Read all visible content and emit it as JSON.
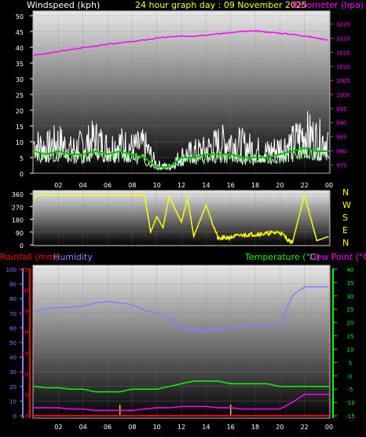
{
  "header": {
    "windspeed_label": "Windspeed (kph)",
    "title": "24 hour graph day : 09 November 2025",
    "barometer_label": "Barometer (hpa)"
  },
  "colors": {
    "windspeed": "#ffffff",
    "title": "#ffff00",
    "barometer": "#ff00ff",
    "wind_gust": "#ffffff",
    "wind_avg_light": "#b0ffb0",
    "wind_avg_dark": "#00c000",
    "wind_dir": "#ffff00",
    "rainfall": "#ff0000",
    "humidity": "#8080ff",
    "temperature": "#00ff00",
    "dewpoint": "#ff00ff",
    "rain_bar": "#ffcc00"
  },
  "x_tick_labels": [
    "02",
    "04",
    "06",
    "08",
    "10",
    "12",
    "14",
    "16",
    "18",
    "20",
    "22",
    "00"
  ],
  "panel_top": {
    "left_ticks": [
      "0",
      "5",
      "10",
      "15",
      "20",
      "25",
      "30",
      "35",
      "40",
      "45",
      "50"
    ],
    "right_ticks": [
      "975",
      "980",
      "985",
      "990",
      "995",
      "1000",
      "1005",
      "1010",
      "1015",
      "1020",
      "1025"
    ]
  },
  "panel_mid": {
    "left_ticks": [
      "0",
      "90",
      "180",
      "270",
      "360"
    ],
    "compass": [
      "N",
      "W",
      "S",
      "E",
      "N"
    ]
  },
  "panel_bottom": {
    "rain_label": "Rainfall (mm)",
    "humidity_label": "Humidity",
    "temp_label": "Temperature (°C)",
    "dew_label": "Dew Point (°C)",
    "humidity_ticks": [
      "0",
      "10",
      "20",
      "30",
      "40",
      "50",
      "60",
      "70",
      "80",
      "90",
      "100"
    ],
    "rain_ticks": [
      "0",
      "5",
      "10",
      "15",
      "20",
      "25",
      "30",
      "35"
    ],
    "temp_ticks": [
      "-15",
      "-10",
      "-5",
      "0",
      "5",
      "10",
      "15",
      "20",
      "25",
      "30",
      "35",
      "40"
    ]
  },
  "chart_data": [
    {
      "type": "line",
      "title": "24 hour graph day : 09 November 2025",
      "x_unit": "hour",
      "xlim": [
        0,
        24
      ],
      "y_left": {
        "label": "Windspeed (kph)",
        "ylim": [
          0,
          50
        ]
      },
      "y_right": {
        "label": "Barometer (hpa)",
        "ylim": [
          972,
          1028
        ]
      },
      "series": [
        {
          "name": "Barometer (hpa)",
          "axis": "right",
          "x": [
            0,
            1,
            2,
            3,
            4,
            5,
            6,
            7,
            8,
            9,
            10,
            11,
            12,
            13,
            14,
            15,
            16,
            17,
            18,
            19,
            20,
            21,
            22,
            23,
            24
          ],
          "values": [
            1014.0,
            1014.5,
            1015.3,
            1016.0,
            1016.7,
            1017.2,
            1017.8,
            1018.4,
            1018.8,
            1019.4,
            1020.0,
            1020.5,
            1020.7,
            1020.8,
            1021.2,
            1021.6,
            1022.0,
            1022.4,
            1022.6,
            1022.2,
            1021.8,
            1021.4,
            1020.8,
            1020.1,
            1019.3
          ]
        },
        {
          "axis": "left",
          "x": [
            0,
            1,
            2,
            3,
            4,
            5,
            6,
            7,
            8,
            9,
            10,
            11,
            12,
            13,
            14,
            15,
            16,
            17,
            18,
            19,
            20,
            21,
            22,
            23,
            24
          ],
          "values": [
            14,
            12,
            15,
            11,
            13,
            16,
            12,
            14,
            12,
            13,
            4,
            3,
            8,
            10,
            11,
            14,
            15,
            13,
            11,
            10,
            12,
            14,
            19,
            16,
            15
          ]
        },
        {
          "axis": "left",
          "x": [
            0,
            1,
            2,
            3,
            4,
            5,
            6,
            7,
            8,
            9,
            10,
            11,
            12,
            13,
            14,
            15,
            16,
            17,
            18,
            19,
            20,
            21,
            22,
            23,
            24
          ],
          "values": [
            7,
            6,
            7,
            6,
            6,
            7,
            6,
            7,
            6,
            5,
            2,
            2,
            5,
            5,
            6,
            6,
            6,
            5,
            5,
            5,
            6,
            7,
            8,
            7,
            7
          ]
        }
      ]
    },
    {
      "type": "scatter",
      "title": "",
      "x_unit": "hour",
      "xlim": [
        0,
        24
      ],
      "ylim": [
        0,
        360
      ],
      "y_ticks": [
        0,
        90,
        180,
        270,
        360
      ],
      "series": [
        {
          "axis": "left",
          "x": [
            0,
            0.5,
            1,
            2,
            3,
            4,
            5,
            6,
            7,
            8,
            9,
            9.5,
            10,
            10.5,
            11,
            12,
            12.5,
            13,
            14,
            15,
            16,
            17,
            18,
            19,
            20,
            21,
            22,
            23,
            24
          ],
          "values": [
            330,
            355,
            350,
            350,
            350,
            350,
            350,
            350,
            350,
            350,
            350,
            90,
            200,
            120,
            340,
            160,
            330,
            60,
            280,
            40,
            55,
            70,
            75,
            80,
            90,
            10,
            350,
            30,
            60
          ]
        }
      ]
    },
    {
      "type": "line",
      "title": "",
      "x_unit": "hour",
      "xlim": [
        0,
        24
      ],
      "y_left_humidity": {
        "label": "Humidity",
        "ylim": [
          0,
          100
        ]
      },
      "y_left_rain": {
        "label": "Rainfall (mm)",
        "ylim": [
          0,
          35
        ]
      },
      "y_right": {
        "label": "Temperature (°C) / Dew Point (°C)",
        "ylim": [
          -15,
          40
        ]
      },
      "series": [
        {
          "name": "Humidity",
          "axis": "humidity",
          "x": [
            0,
            1,
            2,
            3,
            4,
            5,
            6,
            7,
            8,
            9,
            10,
            11,
            12,
            13,
            14,
            15,
            16,
            17,
            18,
            19,
            20,
            21,
            22,
            23,
            24
          ],
          "values": [
            71,
            73,
            74,
            74,
            75,
            77,
            78,
            77,
            76,
            72,
            70,
            66,
            60,
            59,
            58,
            59,
            60,
            61,
            62,
            62,
            62,
            82,
            88,
            88,
            88
          ]
        },
        {
          "name": "Temperature (°C)",
          "axis": "temp",
          "x": [
            0,
            1,
            2,
            3,
            4,
            5,
            6,
            7,
            8,
            9,
            10,
            11,
            12,
            13,
            14,
            15,
            16,
            17,
            18,
            19,
            20,
            21,
            22,
            23,
            24
          ],
          "values": [
            -4,
            -4.5,
            -4.5,
            -5,
            -5,
            -6,
            -6,
            -6,
            -5,
            -5,
            -5,
            -4,
            -3,
            -2,
            -2,
            -2,
            -3,
            -3,
            -3,
            -3,
            -4,
            -4,
            -4,
            -4,
            -4
          ]
        },
        {
          "name": "Dew Point (°C)",
          "axis": "temp",
          "x": [
            0,
            1,
            2,
            3,
            4,
            5,
            6,
            7,
            8,
            9,
            10,
            11,
            12,
            13,
            14,
            15,
            16,
            17,
            18,
            19,
            20,
            21,
            22,
            23,
            24
          ],
          "values": [
            -12,
            -12,
            -12,
            -12.5,
            -12.5,
            -13,
            -13,
            -13,
            -13,
            -12.5,
            -12,
            -12,
            -11.5,
            -11.5,
            -11.5,
            -12,
            -12,
            -12.5,
            -12.5,
            -12.5,
            -12.5,
            -10,
            -7,
            -7,
            -7
          ]
        },
        {
          "name": "Rainfall (mm)",
          "axis": "rain",
          "x": [
            0,
            1,
            2,
            3,
            4,
            5,
            6,
            7,
            8,
            9,
            10,
            11,
            12,
            13,
            14,
            15,
            16,
            17,
            18,
            19,
            20,
            21,
            22,
            23,
            24
          ],
          "values": [
            0,
            0,
            0,
            0,
            0,
            0,
            0,
            0,
            0,
            0,
            0,
            0,
            0,
            0,
            0,
            0,
            0,
            0,
            0,
            0,
            0,
            0,
            0,
            0,
            0
          ]
        }
      ],
      "rain_events_hour": [
        7,
        16
      ]
    }
  ]
}
